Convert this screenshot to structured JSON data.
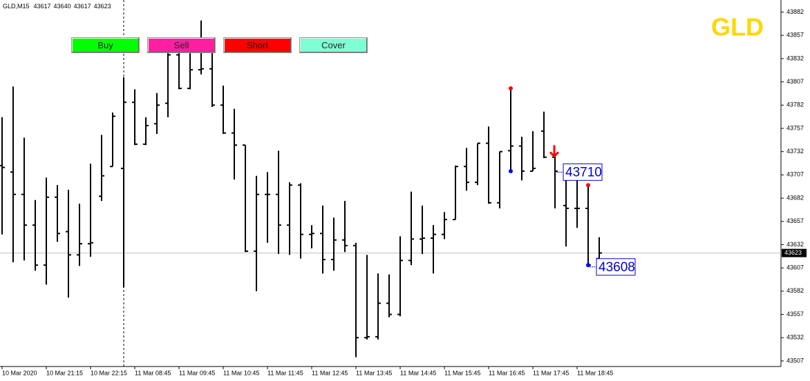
{
  "chart_data": {
    "type": "ohlc",
    "title": "GLD,M15",
    "symbol": "GLD",
    "categories": [
      "10 Mar 2020",
      null,
      null,
      null,
      "10 Mar 21:15",
      null,
      null,
      null,
      "10 Mar 22:15",
      null,
      null,
      null,
      "11 Mar 08:45",
      null,
      null,
      null,
      "11 Mar 09:45",
      null,
      null,
      null,
      "11 Mar 10:45",
      null,
      null,
      null,
      "11 Mar 11:45",
      null,
      null,
      null,
      "11 Mar 12:45",
      null,
      null,
      null,
      "11 Mar 13:45",
      null,
      null,
      null,
      "11 Mar 14:45",
      null,
      null,
      null,
      "11 Mar 15:45",
      null,
      null,
      null,
      "11 Mar 16:45",
      null,
      null,
      null,
      "11 Mar 17:45",
      null,
      null,
      null,
      "11 Mar 18:45",
      null,
      null
    ],
    "open": [
      43717,
      43710,
      43686,
      43653,
      43610,
      43683,
      43646,
      43621,
      43633,
      43684,
      43716,
      43714,
      43785,
      43740,
      43762,
      43784,
      43836,
      43800,
      43820,
      43821,
      43782,
      43752,
      43739,
      43625,
      43686,
      43686,
      43653,
      43696,
      43643,
      43644,
      43616,
      43637,
      43631,
      43532,
      43533,
      43569,
      43557,
      43615,
      43638,
      43639,
      43643,
      43659,
      43716,
      43699,
      43741,
      43677,
      43733,
      43738,
      43711,
      43754,
      43726,
      43674,
      43671,
      43671,
      43617
    ],
    "high": [
      43769,
      43802,
      43747,
      43680,
      43704,
      43696,
      43691,
      43676,
      43719,
      43750,
      43774,
      43812,
      43799,
      43769,
      43795,
      43843,
      43848,
      43849,
      43873,
      43845,
      43803,
      43778,
      43739,
      43706,
      43710,
      43733,
      43699,
      43698,
      43653,
      43674,
      43661,
      43679,
      43634,
      43621,
      43601,
      43600,
      43641,
      43689,
      43674,
      43653,
      43667,
      43717,
      43736,
      43741,
      43759,
      43732,
      43800,
      43748,
      43754,
      43775,
      43729,
      43708,
      43704,
      43696,
      43640
    ],
    "low": [
      43643,
      43613,
      43615,
      43604,
      43589,
      43635,
      43575,
      43609,
      43619,
      43679,
      43716,
      43586,
      43739,
      43739,
      43751,
      43769,
      43799,
      43799,
      43815,
      43780,
      43751,
      43702,
      43624,
      43582,
      43634,
      43622,
      43621,
      43617,
      43628,
      43601,
      43604,
      43624,
      43511,
      43530,
      43530,
      43554,
      43555,
      43610,
      43622,
      43601,
      43638,
      43659,
      43690,
      43696,
      43676,
      43671,
      43710,
      43701,
      43711,
      43725,
      43671,
      43630,
      43650,
      43610,
      43617
    ],
    "close": [
      43715,
      43686,
      43653,
      43610,
      43683,
      43644,
      43621,
      43633,
      43634,
      43706,
      43770,
      43785,
      43740,
      43760,
      43782,
      43836,
      43800,
      43820,
      43821,
      43782,
      43752,
      43739,
      43625,
      43686,
      43686,
      43653,
      43696,
      43643,
      43644,
      43616,
      43637,
      43631,
      43532,
      43533,
      43569,
      43557,
      43615,
      43638,
      43639,
      43643,
      43659,
      43716,
      43699,
      43741,
      43677,
      43732,
      43738,
      43711,
      43714,
      43726,
      43711,
      43671,
      43671,
      43610,
      43623
    ],
    "red_dots": [
      null,
      null,
      null,
      null,
      null,
      null,
      null,
      null,
      null,
      null,
      null,
      null,
      null,
      null,
      null,
      null,
      null,
      null,
      null,
      null,
      null,
      null,
      null,
      null,
      null,
      null,
      null,
      null,
      null,
      null,
      null,
      null,
      null,
      null,
      null,
      null,
      null,
      null,
      null,
      null,
      null,
      null,
      null,
      null,
      null,
      null,
      43800,
      null,
      null,
      null,
      null,
      null,
      null,
      43696,
      null
    ],
    "blue_dots": [
      null,
      null,
      null,
      null,
      null,
      null,
      null,
      null,
      null,
      null,
      null,
      null,
      null,
      null,
      null,
      null,
      null,
      null,
      null,
      null,
      null,
      null,
      null,
      null,
      null,
      null,
      null,
      null,
      null,
      null,
      null,
      null,
      null,
      null,
      null,
      null,
      null,
      null,
      null,
      null,
      null,
      null,
      null,
      null,
      null,
      null,
      43711,
      null,
      null,
      null,
      null,
      null,
      null,
      43610,
      null
    ],
    "sell_arrows": [
      null,
      null,
      null,
      null,
      null,
      null,
      null,
      null,
      null,
      null,
      null,
      null,
      null,
      null,
      null,
      null,
      null,
      null,
      null,
      null,
      null,
      null,
      null,
      null,
      null,
      null,
      null,
      null,
      null,
      null,
      null,
      null,
      null,
      null,
      null,
      null,
      null,
      null,
      null,
      null,
      null,
      null,
      null,
      null,
      null,
      null,
      null,
      null,
      null,
      null,
      43727,
      null,
      null,
      null,
      null
    ],
    "price_labels": [
      null,
      null,
      null,
      null,
      null,
      null,
      null,
      null,
      null,
      null,
      null,
      null,
      null,
      null,
      null,
      null,
      null,
      null,
      null,
      null,
      null,
      null,
      null,
      null,
      null,
      null,
      null,
      null,
      null,
      null,
      null,
      null,
      null,
      null,
      null,
      null,
      null,
      null,
      null,
      null,
      null,
      null,
      null,
      null,
      null,
      null,
      null,
      null,
      null,
      null,
      43710,
      null,
      null,
      43608,
      null
    ],
    "ylim": [
      43501,
      43895
    ],
    "yticks": [
      43882,
      43857,
      43832,
      43807,
      43782,
      43757,
      43732,
      43707,
      43682,
      43657,
      43632,
      43607,
      43582,
      43557,
      43532,
      43507
    ],
    "buttons": [
      "Buy",
      "Sell",
      "Short",
      "Cover"
    ]
  }
}
